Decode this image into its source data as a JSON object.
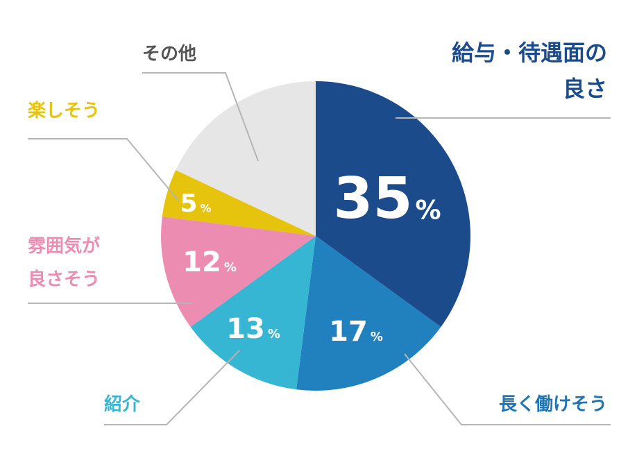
{
  "chart_data": {
    "type": "pie",
    "categories": [
      "給与・待遇面の\n良さ",
      "長く働けそう",
      "紹介",
      "雰囲気が\n良さそう",
      "楽しそう",
      "その他"
    ],
    "values": [
      35,
      17,
      13,
      12,
      5,
      18
    ],
    "value_labels": [
      "35%",
      "17%",
      "13%",
      "12%",
      "5%",
      null
    ],
    "colors": [
      "#1b4b8b",
      "#2181bf",
      "#36b6d3",
      "#ec8cb1",
      "#e6c30c",
      "#e6e6e6"
    ],
    "label_colors": [
      "#1b4b8b",
      "#1f74b4",
      "#36b6d3",
      "#ec8cb1",
      "#e6c30c",
      "#555555"
    ]
  }
}
